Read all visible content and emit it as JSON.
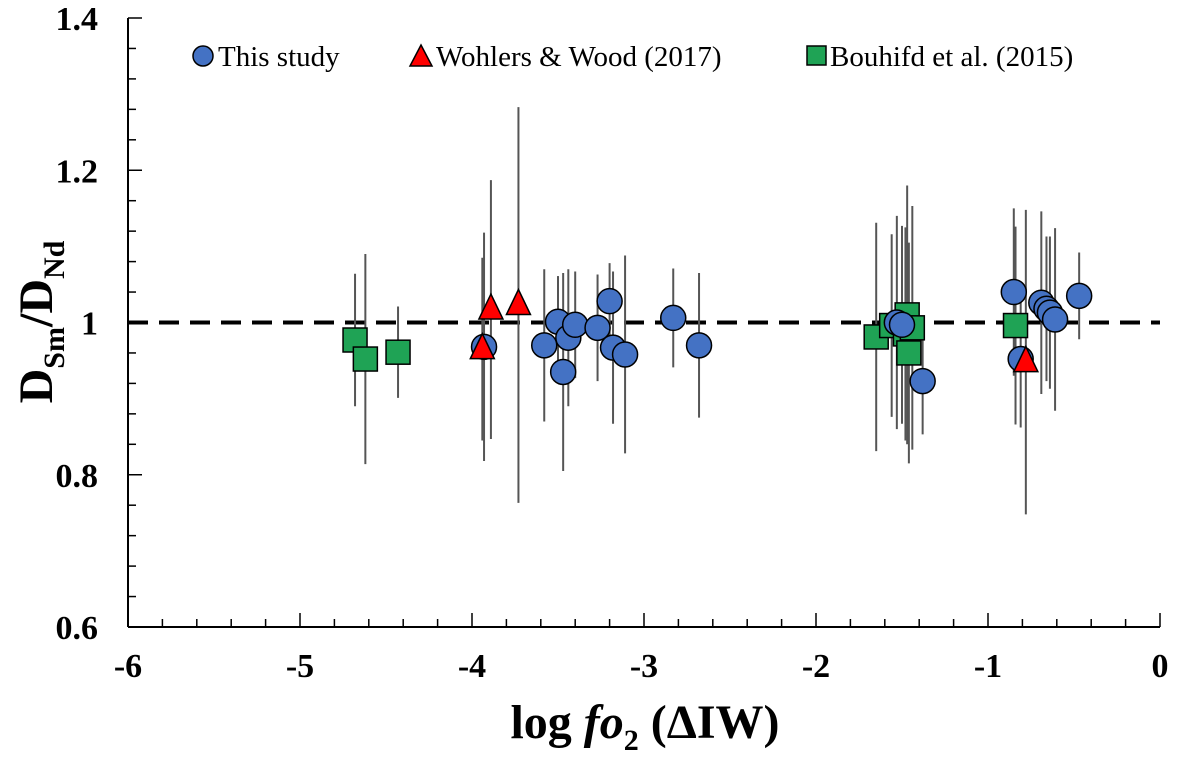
{
  "chart_data": {
    "type": "scatter",
    "xlabel": {
      "prefix": "log ",
      "italic": "fo",
      "sub": "2",
      "suffix": " (ΔIW)"
    },
    "ylabel": {
      "d1": "D",
      "sub1": "Sm",
      "slash": "/",
      "d2": "D",
      "sub2": "Nd"
    },
    "xlim": [
      -6,
      0
    ],
    "ylim": [
      0.6,
      1.4
    ],
    "x_ticks": [
      -6,
      -5,
      -4,
      -3,
      -2,
      -1,
      0
    ],
    "x_tick_labels": [
      "-6",
      "-5",
      "-4",
      "-3",
      "-2",
      "-1",
      "0"
    ],
    "y_ticks": [
      0.6,
      0.8,
      1.0,
      1.2,
      1.4
    ],
    "y_tick_labels": [
      "0.6",
      "0.8",
      "1",
      "1.2",
      "1.4"
    ],
    "x_minor_step": 0.2,
    "y_minor_step": 0.04,
    "grid": false,
    "legend_position": "top",
    "reference_line": {
      "y": 1.0,
      "style": "dashed",
      "color": "#000000"
    },
    "series": [
      {
        "name": "This study",
        "marker": "circle",
        "color": "#4472c4",
        "points": [
          {
            "x": -3.93,
            "y": 0.968,
            "err": 0.15
          },
          {
            "x": -3.58,
            "y": 0.97,
            "err": 0.1
          },
          {
            "x": -3.5,
            "y": 1.001,
            "err": 0.06
          },
          {
            "x": -3.47,
            "y": 0.935,
            "err": 0.13
          },
          {
            "x": -3.44,
            "y": 0.98,
            "err": 0.09
          },
          {
            "x": -3.4,
            "y": 0.997,
            "err": 0.07
          },
          {
            "x": -3.27,
            "y": 0.993,
            "err": 0.07
          },
          {
            "x": -3.2,
            "y": 1.028,
            "err": 0.05
          },
          {
            "x": -3.18,
            "y": 0.967,
            "err": 0.1
          },
          {
            "x": -3.11,
            "y": 0.958,
            "err": 0.13
          },
          {
            "x": -2.83,
            "y": 1.006,
            "err": 0.065
          },
          {
            "x": -2.68,
            "y": 0.97,
            "err": 0.095
          },
          {
            "x": -1.53,
            "y": 1.0,
            "err": 0.14
          },
          {
            "x": -1.5,
            "y": 0.997,
            "err": 0.13
          },
          {
            "x": -1.38,
            "y": 0.923,
            "err": 0.07
          },
          {
            "x": -0.85,
            "y": 1.04,
            "err": 0.11
          },
          {
            "x": -0.81,
            "y": 0.952,
            "err": 0.09
          },
          {
            "x": -0.69,
            "y": 1.026,
            "err": 0.12
          },
          {
            "x": -0.66,
            "y": 1.018,
            "err": 0.095
          },
          {
            "x": -0.64,
            "y": 1.013,
            "err": 0.1
          },
          {
            "x": -0.61,
            "y": 1.004,
            "err": 0.12
          },
          {
            "x": -0.47,
            "y": 1.035,
            "err": 0.057
          }
        ]
      },
      {
        "name": "Wohlers & Wood (2017)",
        "marker": "triangle",
        "color": "#ff0000",
        "points": [
          {
            "x": -3.94,
            "y": 0.965,
            "err": 0.12
          },
          {
            "x": -3.89,
            "y": 1.017,
            "err": 0.17
          },
          {
            "x": -3.73,
            "y": 1.023,
            "err": 0.26
          },
          {
            "x": -0.78,
            "y": 0.948,
            "err": 0.2
          }
        ]
      },
      {
        "name": "Bouhifd et al. (2015)",
        "marker": "square",
        "color": "#1fa355",
        "points": [
          {
            "x": -4.68,
            "y": 0.977,
            "err": 0.087
          },
          {
            "x": -4.62,
            "y": 0.952,
            "err": 0.138
          },
          {
            "x": -4.43,
            "y": 0.961,
            "err": 0.06
          },
          {
            "x": -1.65,
            "y": 0.981,
            "err": 0.15
          },
          {
            "x": -1.56,
            "y": 0.996,
            "err": 0.12
          },
          {
            "x": -1.48,
            "y": 0.985,
            "err": 0.14
          },
          {
            "x": -1.47,
            "y": 1.01,
            "err": 0.17
          },
          {
            "x": -1.46,
            "y": 0.96,
            "err": 0.145
          },
          {
            "x": -1.44,
            "y": 0.993,
            "err": 0.16
          },
          {
            "x": -0.84,
            "y": 0.996,
            "err": 0.13
          }
        ]
      }
    ]
  }
}
